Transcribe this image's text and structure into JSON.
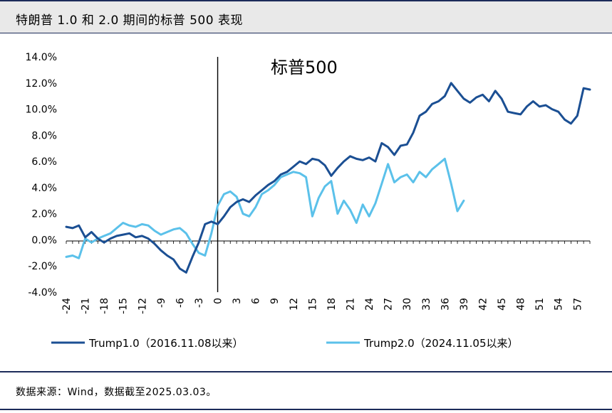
{
  "header": {
    "title": "特朗普 1.0 和 2.0 期间的标普 500 表现"
  },
  "footer": {
    "source": "数据来源：Wind，数据截至2025.03.03。"
  },
  "colors": {
    "trump1": "#1b4f93",
    "trump2": "#5bc1ea",
    "header_bg": "#e9e9e9",
    "rule": "#1c2b5a"
  },
  "chart_data": {
    "type": "line",
    "title": "标普500",
    "xlabel": "",
    "ylabel": "",
    "ylim": [
      -4,
      14
    ],
    "xlim": [
      -24,
      59
    ],
    "y_ticks": [
      -4,
      -2,
      0,
      2,
      4,
      6,
      8,
      10,
      12,
      14
    ],
    "y_tick_labels": [
      "-4.0%",
      "-2.0%",
      "0.0%",
      "2.0%",
      "4.0%",
      "6.0%",
      "8.0%",
      "10.0%",
      "12.0%",
      "14.0%"
    ],
    "x_ticks": [
      -24,
      -21,
      -18,
      -15,
      -12,
      -9,
      -6,
      -3,
      0,
      3,
      6,
      9,
      12,
      15,
      18,
      21,
      24,
      27,
      30,
      33,
      36,
      39,
      42,
      45,
      48,
      51,
      54,
      57
    ],
    "x_tick_labels": [
      "-24",
      "-21",
      "-18",
      "-15",
      "-12",
      "-9",
      "-6",
      "-3",
      "0",
      "3",
      "6",
      "9",
      "12",
      "15",
      "18",
      "21",
      "24",
      "27",
      "30",
      "33",
      "36",
      "39",
      "42",
      "45",
      "48",
      "51",
      "54",
      "57"
    ],
    "legend_position": "bottom",
    "series": [
      {
        "name": "Trump1.0（2016.11.08以来）",
        "color": "#1b4f93",
        "x": [
          -24,
          -23,
          -22,
          -21,
          -20,
          -19,
          -18,
          -17,
          -16,
          -15,
          -14,
          -13,
          -12,
          -11,
          -10,
          -9,
          -8,
          -7,
          -6,
          -5,
          -4,
          -3,
          -2,
          -1,
          0,
          1,
          2,
          3,
          4,
          5,
          6,
          7,
          8,
          9,
          10,
          11,
          12,
          13,
          14,
          15,
          16,
          17,
          18,
          19,
          20,
          21,
          22,
          23,
          24,
          25,
          26,
          27,
          28,
          29,
          30,
          31,
          32,
          33,
          34,
          35,
          36,
          37,
          38,
          39,
          40,
          41,
          42,
          43,
          44,
          45,
          46,
          47,
          48,
          49,
          50,
          51,
          52,
          53,
          54,
          55,
          56,
          57,
          58,
          59
        ],
        "y": [
          1.0,
          0.9,
          1.1,
          0.2,
          0.6,
          0.1,
          -0.2,
          0.1,
          0.3,
          0.4,
          0.5,
          0.2,
          0.3,
          0.1,
          -0.3,
          -0.8,
          -1.2,
          -1.5,
          -2.2,
          -2.5,
          -1.3,
          -0.2,
          1.2,
          1.4,
          1.2,
          1.8,
          2.5,
          2.9,
          3.1,
          2.9,
          3.4,
          3.8,
          4.2,
          4.5,
          5.0,
          5.2,
          5.6,
          6.0,
          5.8,
          6.2,
          6.1,
          5.7,
          4.9,
          5.5,
          6.0,
          6.4,
          6.2,
          6.1,
          6.3,
          6.0,
          7.4,
          7.1,
          6.5,
          7.2,
          7.3,
          8.2,
          9.5,
          9.8,
          10.4,
          10.6,
          11.0,
          12.0,
          11.4,
          10.8,
          10.5,
          10.9,
          11.1,
          10.6,
          11.4,
          10.8,
          9.8,
          9.7,
          9.6,
          10.2,
          10.6,
          10.2,
          10.3,
          10.0,
          9.8,
          9.2,
          8.9,
          9.5,
          11.6,
          11.5
        ]
      },
      {
        "name": "Trump2.0（2024.11.05以来）",
        "color": "#5bc1ea",
        "x": [
          -24,
          -23,
          -22,
          -21,
          -20,
          -19,
          -18,
          -17,
          -16,
          -15,
          -14,
          -13,
          -12,
          -11,
          -10,
          -9,
          -8,
          -7,
          -6,
          -5,
          -4,
          -3,
          -2,
          -1,
          0,
          1,
          2,
          3,
          4,
          5,
          6,
          7,
          8,
          9,
          10,
          11,
          12,
          13,
          14,
          15,
          16,
          17,
          18,
          19,
          20,
          21,
          22,
          23,
          24,
          25,
          26,
          27,
          28,
          29,
          30,
          31,
          32,
          33,
          34,
          35,
          36,
          37,
          38,
          39
        ],
        "y": [
          -1.3,
          -1.2,
          -1.4,
          0.1,
          -0.2,
          0.1,
          0.3,
          0.5,
          0.9,
          1.3,
          1.1,
          1.0,
          1.2,
          1.1,
          0.7,
          0.4,
          0.6,
          0.8,
          0.9,
          0.5,
          -0.3,
          -1.0,
          -1.2,
          0.5,
          2.6,
          3.5,
          3.7,
          3.3,
          2.0,
          1.8,
          2.5,
          3.5,
          3.8,
          4.2,
          4.8,
          5.0,
          5.2,
          5.1,
          4.8,
          1.8,
          3.2,
          4.1,
          4.5,
          2.0,
          3.0,
          2.3,
          1.3,
          2.7,
          1.8,
          2.8,
          4.3,
          5.8,
          4.4,
          4.8,
          5.0,
          4.4,
          5.2,
          4.8,
          5.4,
          5.8,
          6.2,
          4.3,
          2.2,
          3.0
        ]
      }
    ]
  }
}
